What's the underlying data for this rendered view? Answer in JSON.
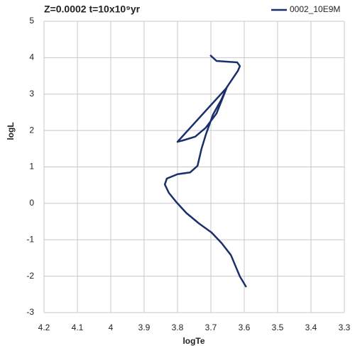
{
  "chart_data": {
    "type": "line",
    "title": "Z=0.0002 t=10x10⁹yr",
    "x_label": "logTe",
    "y_label": "logL",
    "x": [
      3.594,
      3.613,
      3.64,
      3.668,
      3.698,
      3.736,
      3.774,
      3.804,
      3.826,
      3.838,
      3.832,
      3.8,
      3.762,
      3.74,
      3.728,
      3.715,
      3.694,
      3.668,
      3.651,
      3.683,
      3.715,
      3.747,
      3.783,
      3.8,
      3.655,
      3.619,
      3.613,
      3.621,
      3.683,
      3.702
    ],
    "series": [
      {
        "name": "0002_10E9M",
        "color": "#1b2f6b",
        "values": [
          -2.3,
          -2.01,
          -1.42,
          -1.09,
          -0.8,
          -0.55,
          -0.26,
          0.04,
          0.29,
          0.52,
          0.68,
          0.8,
          0.85,
          1.03,
          1.5,
          1.89,
          2.43,
          2.86,
          3.21,
          2.47,
          2.08,
          1.83,
          1.73,
          1.69,
          3.15,
          3.64,
          3.77,
          3.87,
          3.91,
          4.07
        ]
      }
    ],
    "xlim": [
      4.2,
      3.3
    ],
    "xticks": [
      4.2,
      4.1,
      4,
      3.9,
      3.8,
      3.7,
      3.6,
      3.5,
      3.4,
      3.3
    ],
    "ylim": [
      -3,
      5
    ],
    "yticks": [
      -3,
      -2,
      -1,
      0,
      1,
      2,
      3,
      4,
      5
    ],
    "grid": true,
    "legend": "top-right"
  }
}
